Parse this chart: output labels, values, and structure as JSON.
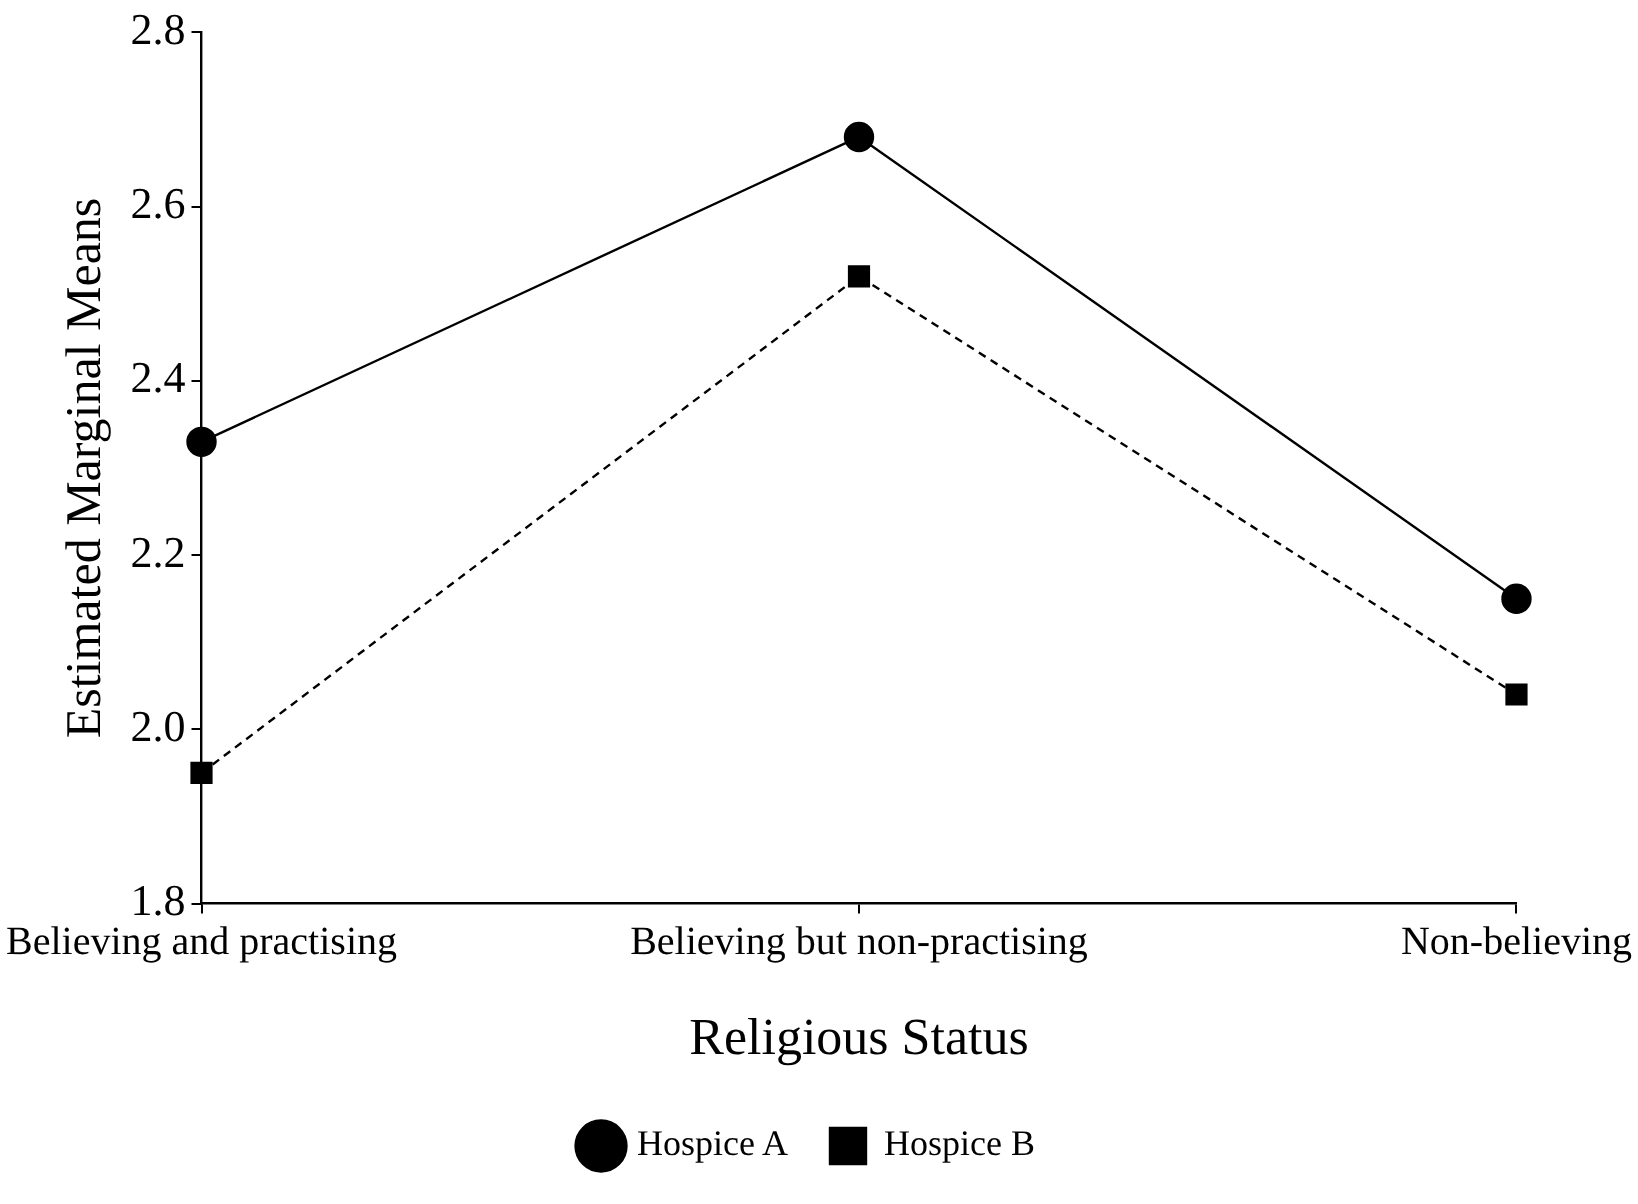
{
  "chart_data": {
    "type": "line",
    "xlabel": "Religious Status",
    "ylabel": "Estimated Marginal Means",
    "categories": [
      "Believing and practising",
      "Believing but non-practising",
      "Non-believing"
    ],
    "series": [
      {
        "name": "Hospice A",
        "color": "#000000",
        "values": [
          2.33,
          2.68,
          2.15
        ],
        "marker": "circle",
        "line_style": "solid"
      },
      {
        "name": "Hospice B",
        "color": "#000000",
        "values": [
          1.95,
          2.52,
          2.04
        ],
        "marker": "square",
        "line_style": "dashed"
      }
    ],
    "ylim": [
      1.8,
      2.8
    ],
    "yticks": [
      1.8,
      {
        "value": 2,
        "label": "2.0"
      },
      2.2,
      2.4,
      2.6,
      2.8
    ],
    "grid": false,
    "legend": "bottom"
  }
}
